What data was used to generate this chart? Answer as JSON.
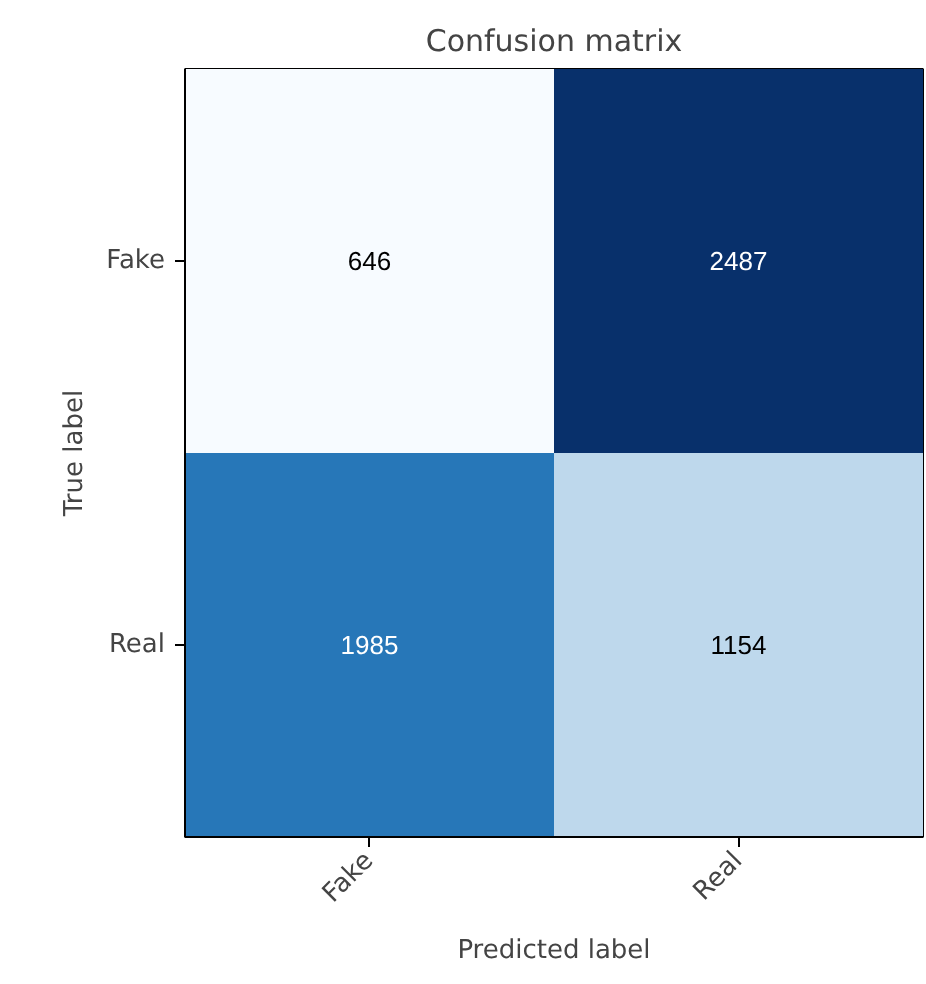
{
  "chart_data": {
    "type": "heatmap",
    "title": "Confusion matrix",
    "xlabel": "Predicted label",
    "ylabel": "True label",
    "categories": [
      "Fake",
      "Real"
    ],
    "y_categories": [
      "Fake",
      "Real"
    ],
    "cells": [
      [
        646,
        2487
      ],
      [
        1985,
        1154
      ]
    ],
    "data_labels": true
  }
}
